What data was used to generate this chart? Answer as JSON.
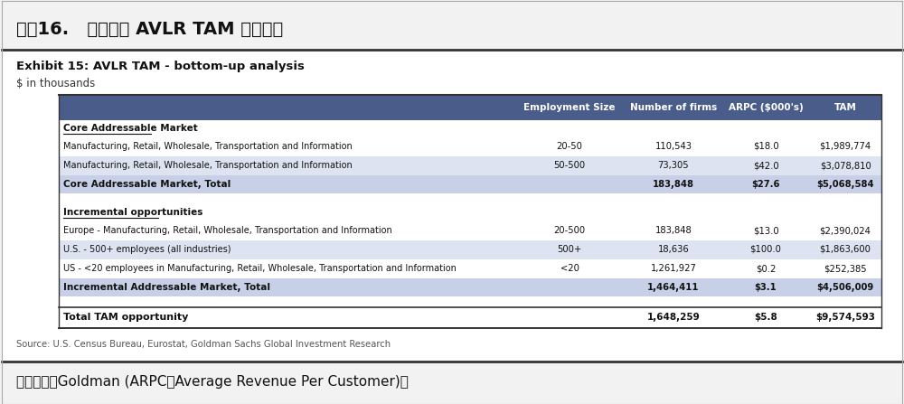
{
  "title_top": "图表16.   高盛对于 AVLR TAM 的估计。",
  "exhibit_title": "Exhibit 15: AVLR TAM - bottom-up analysis",
  "exhibit_subtitle": "$ in thousands",
  "source_text": "Source: U.S. Census Bureau, Eurostat, Goldman Sachs Global Investment Research",
  "footer_text": "资料来源：Goldman (ARPC：Average Revenue Per Customer)。",
  "header_cols": [
    "Employment Size",
    "Number of firms",
    "ARPC ($000's)",
    "TAM"
  ],
  "header_bg": "#4a5d8a",
  "header_text_color": "#ffffff",
  "rows": [
    {
      "type": "section_header",
      "label": "Core Addressable Market",
      "cols": [
        "",
        "",
        "",
        ""
      ]
    },
    {
      "type": "data",
      "label": "Manufacturing, Retail, Wholesale, Transportation and Information",
      "cols": [
        "20-50",
        "110,543",
        "$18.0",
        "$1,989,774"
      ],
      "bg": "#ffffff"
    },
    {
      "type": "data",
      "label": "Manufacturing, Retail, Wholesale, Transportation and Information",
      "cols": [
        "50-500",
        "73,305",
        "$42.0",
        "$3,078,810"
      ],
      "bg": "#dde3f0"
    },
    {
      "type": "subtotal",
      "label": "Core Addressable Market, Total",
      "cols": [
        "",
        "183,848",
        "$27.6",
        "$5,068,584"
      ],
      "bg": "#c8d0e8"
    },
    {
      "type": "spacer",
      "label": "",
      "cols": [
        "",
        "",
        "",
        ""
      ],
      "bg": "#ffffff"
    },
    {
      "type": "section_header",
      "label": "Incremental opportunities",
      "cols": [
        "",
        "",
        "",
        ""
      ]
    },
    {
      "type": "data",
      "label": "Europe - Manufacturing, Retail, Wholesale, Transportation and Information",
      "cols": [
        "20-500",
        "183,848",
        "$13.0",
        "$2,390,024"
      ],
      "bg": "#ffffff"
    },
    {
      "type": "data",
      "label": "U.S. - 500+ employees (all industries)",
      "cols": [
        "500+",
        "18,636",
        "$100.0",
        "$1,863,600"
      ],
      "bg": "#dde3f0"
    },
    {
      "type": "data",
      "label": "US - <20 employees in Manufacturing, Retail, Wholesale, Transportation and Information",
      "cols": [
        "<20",
        "1,261,927",
        "$0.2",
        "$252,385"
      ],
      "bg": "#ffffff"
    },
    {
      "type": "subtotal",
      "label": "Incremental Addressable Market, Total",
      "cols": [
        "",
        "1,464,411",
        "$3.1",
        "$4,506,009"
      ],
      "bg": "#c8d0e8"
    },
    {
      "type": "spacer",
      "label": "",
      "cols": [
        "",
        "",
        "",
        ""
      ],
      "bg": "#ffffff"
    },
    {
      "type": "total",
      "label": "Total TAM opportunity",
      "cols": [
        "",
        "1,648,259",
        "$5.8",
        "$9,574,593"
      ],
      "bg": "#ffffff"
    }
  ],
  "outer_bg": "#f2f2f2",
  "content_bg": "#ffffff",
  "title_bg": "#f2f2f2",
  "footer_bg": "#f2f2f2"
}
